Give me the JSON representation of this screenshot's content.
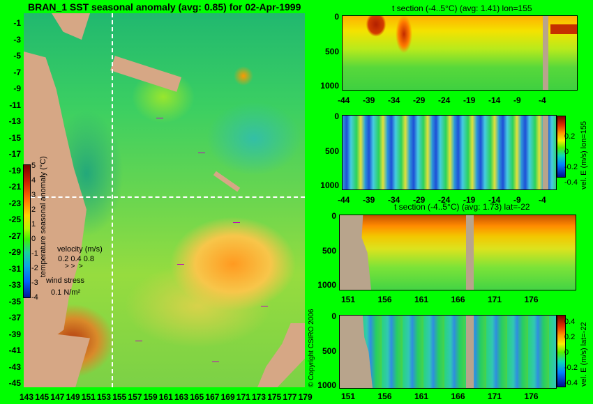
{
  "map": {
    "title": "BRAN_1 SST seasonal anomaly (avg: 0.85) for 02-Apr-1999",
    "y_ticks": [
      "-1",
      "-3",
      "-5",
      "-7",
      "-9",
      "-11",
      "-13",
      "-15",
      "-17",
      "-19",
      "-21",
      "-23",
      "-25",
      "-27",
      "-29",
      "-31",
      "-33",
      "-35",
      "-37",
      "-39",
      "-41",
      "-43",
      "-45"
    ],
    "x_ticks": [
      "143",
      "145",
      "147",
      "149",
      "151",
      "153",
      "155",
      "157",
      "159",
      "161",
      "163",
      "165",
      "167",
      "169",
      "171",
      "173",
      "175",
      "177",
      "179"
    ],
    "colorbar": {
      "label": "temperature seasonal anomaly (°C)",
      "ticks": [
        "5",
        "4",
        "3",
        "2",
        "1",
        "0",
        "-1",
        "-2",
        "-3",
        "-4"
      ],
      "range": [
        -4,
        5
      ]
    },
    "velocity_legend": {
      "title": "velocity (m/s)",
      "values": "0.2 0.4 0.8"
    },
    "wind_legend": {
      "title": "wind stress",
      "value": "0.1 N/m²"
    },
    "copyright": "© Copyright CSIRO 2006",
    "crosshair": {
      "lon": 155,
      "lat": -22
    }
  },
  "panel1": {
    "title": "t section (-4..5°C) (avg: 1.41) lon=155",
    "y_ticks": [
      "0",
      "500",
      "1000"
    ],
    "x_ticks": [
      "-44",
      "-39",
      "-34",
      "-29",
      "-24",
      "-19",
      "-14",
      "-9",
      "-4"
    ]
  },
  "panel2": {
    "x_ticks": [
      "-44",
      "-39",
      "-34",
      "-29",
      "-24",
      "-19",
      "-14",
      "-9",
      "-4"
    ],
    "y_ticks": [
      "0",
      "500",
      "1000"
    ],
    "colorbar_label": "vel. E (m/s) lon=155",
    "colorbar_ticks": [
      "0.2",
      "0",
      "-0.2",
      "-0.4"
    ]
  },
  "panel3": {
    "title": "t section (-4..5°C) (avg: 1.73) lat=-22",
    "y_ticks": [
      "0",
      "500",
      "1000"
    ],
    "x_ticks": [
      "151",
      "156",
      "161",
      "166",
      "171",
      "176"
    ]
  },
  "panel4": {
    "y_ticks": [
      "0",
      "500",
      "1000"
    ],
    "x_ticks": [
      "151",
      "156",
      "161",
      "166",
      "171",
      "176"
    ],
    "colorbar_label": "vel. E (m/s) lat=-22",
    "colorbar_ticks": [
      "0.4",
      "0.2",
      "0",
      "-0.2",
      "-0.4"
    ]
  },
  "colors": {
    "background": "#00ff00",
    "land": "#d6a785",
    "section_mask": "#b8a48c"
  }
}
